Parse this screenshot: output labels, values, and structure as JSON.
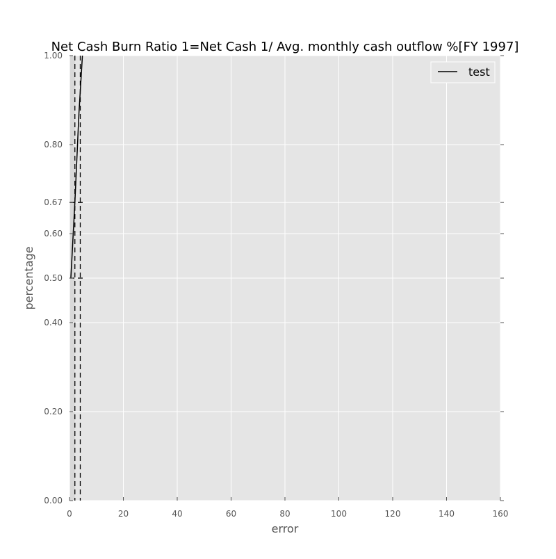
{
  "chart_data": {
    "type": "line",
    "title": "Net Cash Burn Ratio 1=Net Cash 1/ Avg. monthly cash outflow %[FY 1997]",
    "xlabel": "error",
    "ylabel": "percentage",
    "xlim": [
      0,
      160
    ],
    "ylim": [
      0.0,
      1.0
    ],
    "xticks": [
      0,
      20,
      40,
      60,
      80,
      100,
      120,
      140,
      160
    ],
    "xtick_labels": [
      "0",
      "20",
      "40",
      "60",
      "80",
      "100",
      "120",
      "140",
      "160"
    ],
    "yticks": [
      0.0,
      0.2,
      0.4,
      0.5,
      0.6,
      0.67,
      0.8,
      1.0
    ],
    "ytick_labels": [
      "0.00",
      "0.20",
      "0.40",
      "0.50",
      "0.60",
      "0.67",
      "0.80",
      "1.00"
    ],
    "grid": true,
    "legend_position": "top-right",
    "series": [
      {
        "name": "test",
        "color": "#000000",
        "x": [
          0.5,
          2.0,
          3.5,
          4.8
        ],
        "y": [
          0.5,
          0.67,
          0.87,
          1.0
        ]
      }
    ],
    "vertical_dashed_lines": [
      2.0,
      4.0
    ],
    "horizontal_dashed_lines": [
      {
        "y": 0.67,
        "xmin": 0,
        "xmax": 6
      },
      {
        "y": 0.5,
        "xmin": 0,
        "xmax": 6
      }
    ],
    "shaded_region": {
      "xmin": 0,
      "xmax": 2.0,
      "color": "#d8d8d8"
    },
    "colors": {
      "plot_background": "#e5e5e5",
      "grid": "#ffffff"
    }
  }
}
